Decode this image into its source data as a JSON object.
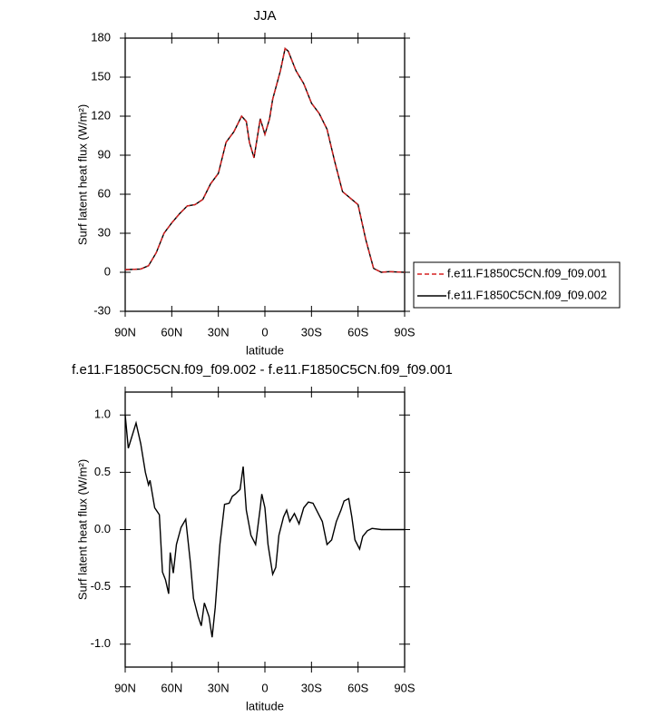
{
  "chart_data": [
    {
      "type": "line",
      "title": "JJA",
      "xlabel": "latitude",
      "ylabel": "Surf latent heat flux (W/m²)",
      "xlim": [
        90,
        -90
      ],
      "ylim": [
        -30,
        180
      ],
      "xticks": [
        {
          "value": 90,
          "label": "90N"
        },
        {
          "value": 60,
          "label": "60N"
        },
        {
          "value": 30,
          "label": "30N"
        },
        0,
        {
          "value": -30,
          "label": "30S"
        },
        {
          "value": -60,
          "label": "60S"
        },
        {
          "value": -90,
          "label": "90S"
        }
      ],
      "yticks": [
        -30,
        0,
        30,
        60,
        90,
        120,
        150,
        180
      ],
      "legend": "right",
      "x": [
        90,
        80,
        75,
        70,
        65,
        60,
        55,
        50,
        45,
        40,
        35,
        30,
        25,
        20,
        15,
        12,
        10,
        7,
        3,
        0,
        -3,
        -5,
        -10,
        -13,
        -15,
        -20,
        -25,
        -30,
        -35,
        -40,
        -45,
        -50,
        -55,
        -60,
        -65,
        -70,
        -75,
        -80,
        -90
      ],
      "series": [
        {
          "name": "f.e11.F1850C5CN.f09_f09.001",
          "color": "#d62020",
          "dash": true,
          "values": [
            2,
            2.5,
            5,
            15,
            30,
            38,
            45,
            51,
            52,
            56,
            68,
            76,
            100,
            108,
            120,
            116,
            100,
            88,
            118,
            106,
            118,
            133,
            155,
            172,
            170,
            155,
            145,
            130,
            122,
            110,
            85,
            62,
            57,
            52,
            25,
            3,
            0,
            0.5,
            0
          ]
        },
        {
          "name": "f.e11.F1850C5CN.f09_f09.002",
          "color": "#000000",
          "dash": false,
          "values": [
            2,
            2.5,
            5,
            15,
            30,
            38,
            45,
            51,
            52,
            56,
            68,
            76,
            100,
            108,
            120,
            116,
            100,
            88,
            118,
            106,
            118,
            133,
            155,
            172,
            170,
            155,
            145,
            130,
            122,
            110,
            85,
            62,
            57,
            52,
            25,
            3,
            0,
            0.5,
            0
          ]
        }
      ]
    },
    {
      "type": "line",
      "title": "f.e11.F1850C5CN.f09_f09.002 - f.e11.F1850C5CN.f09_f09.001",
      "xlabel": "latitude",
      "ylabel": "Surf latent heat flux (W/m²)",
      "xlim": [
        90,
        -90
      ],
      "ylim": [
        -1.2,
        1.2
      ],
      "xticks": [
        {
          "value": 90,
          "label": "90N"
        },
        {
          "value": 60,
          "label": "60N"
        },
        {
          "value": 30,
          "label": "30N"
        },
        0,
        {
          "value": -30,
          "label": "30S"
        },
        {
          "value": -60,
          "label": "60S"
        },
        {
          "value": -90,
          "label": "90S"
        }
      ],
      "yticks": [
        {
          "value": -1,
          "label": "-1.0"
        },
        -0.5,
        {
          "value": 0,
          "label": "0.0"
        },
        0.5,
        {
          "value": 1,
          "label": "1.0"
        }
      ],
      "x": [
        90,
        88,
        83,
        80,
        77,
        75,
        74,
        71,
        68,
        66,
        64,
        62,
        61,
        59,
        57,
        54,
        51,
        48,
        46,
        43,
        41,
        39,
        36,
        34,
        32,
        29,
        26,
        23,
        21,
        19,
        16,
        14,
        12,
        9,
        6,
        3,
        2,
        0,
        -2,
        -5,
        -7,
        -9,
        -12,
        -14,
        -16,
        -19,
        -22,
        -25,
        -28,
        -31,
        -34,
        -37,
        -40,
        -43,
        -46,
        -49,
        -51,
        -54,
        -56,
        -58,
        -61,
        -63,
        -66,
        -69,
        -75,
        -81,
        -90
      ],
      "series": [
        {
          "color": "#000000",
          "dash": false,
          "values": [
            1.0,
            0.71,
            0.93,
            0.75,
            0.5,
            0.39,
            0.43,
            0.19,
            0.13,
            -0.37,
            -0.44,
            -0.56,
            -0.2,
            -0.38,
            -0.13,
            0.02,
            0.09,
            -0.29,
            -0.6,
            -0.76,
            -0.84,
            -0.64,
            -0.76,
            -0.94,
            -0.68,
            -0.13,
            0.22,
            0.23,
            0.29,
            0.31,
            0.35,
            0.55,
            0.17,
            -0.05,
            -0.13,
            0.19,
            0.31,
            0.19,
            -0.13,
            -0.39,
            -0.33,
            -0.05,
            0.11,
            0.17,
            0.07,
            0.14,
            0.05,
            0.19,
            0.24,
            0.23,
            0.15,
            0.07,
            -0.13,
            -0.09,
            0.07,
            0.17,
            0.25,
            0.27,
            0.11,
            -0.09,
            -0.17,
            -0.06,
            -0.01,
            0.01,
            0,
            0,
            0
          ]
        }
      ]
    }
  ]
}
